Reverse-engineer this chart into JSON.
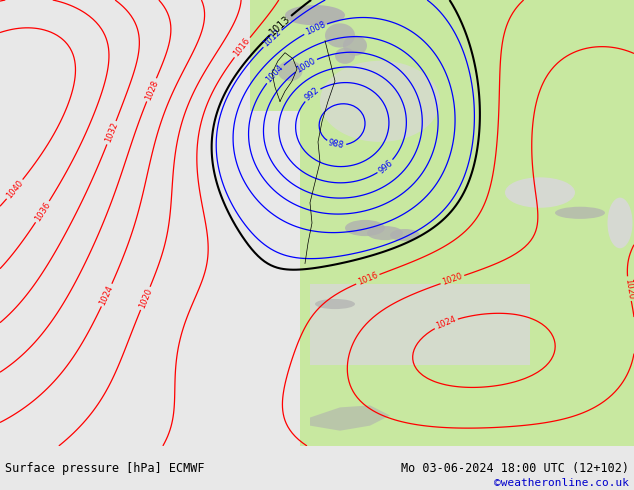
{
  "title_left": "Surface pressure [hPa] ECMWF",
  "title_right": "Mo 03-06-2024 18:00 UTC (12+102)",
  "copyright": "©weatheronline.co.uk",
  "ocean_color": "#d8d8d8",
  "land_color": "#c8e8a0",
  "mountain_color": "#b0b0b0",
  "footer_bg": "#e8e8e8",
  "footer_text_color": "#000000",
  "copyright_color": "#0000cc",
  "fig_width": 6.34,
  "fig_height": 4.9,
  "dpi": 100,
  "contour_blue": "#0000ff",
  "contour_red": "#ff0000",
  "contour_black": "#000000"
}
